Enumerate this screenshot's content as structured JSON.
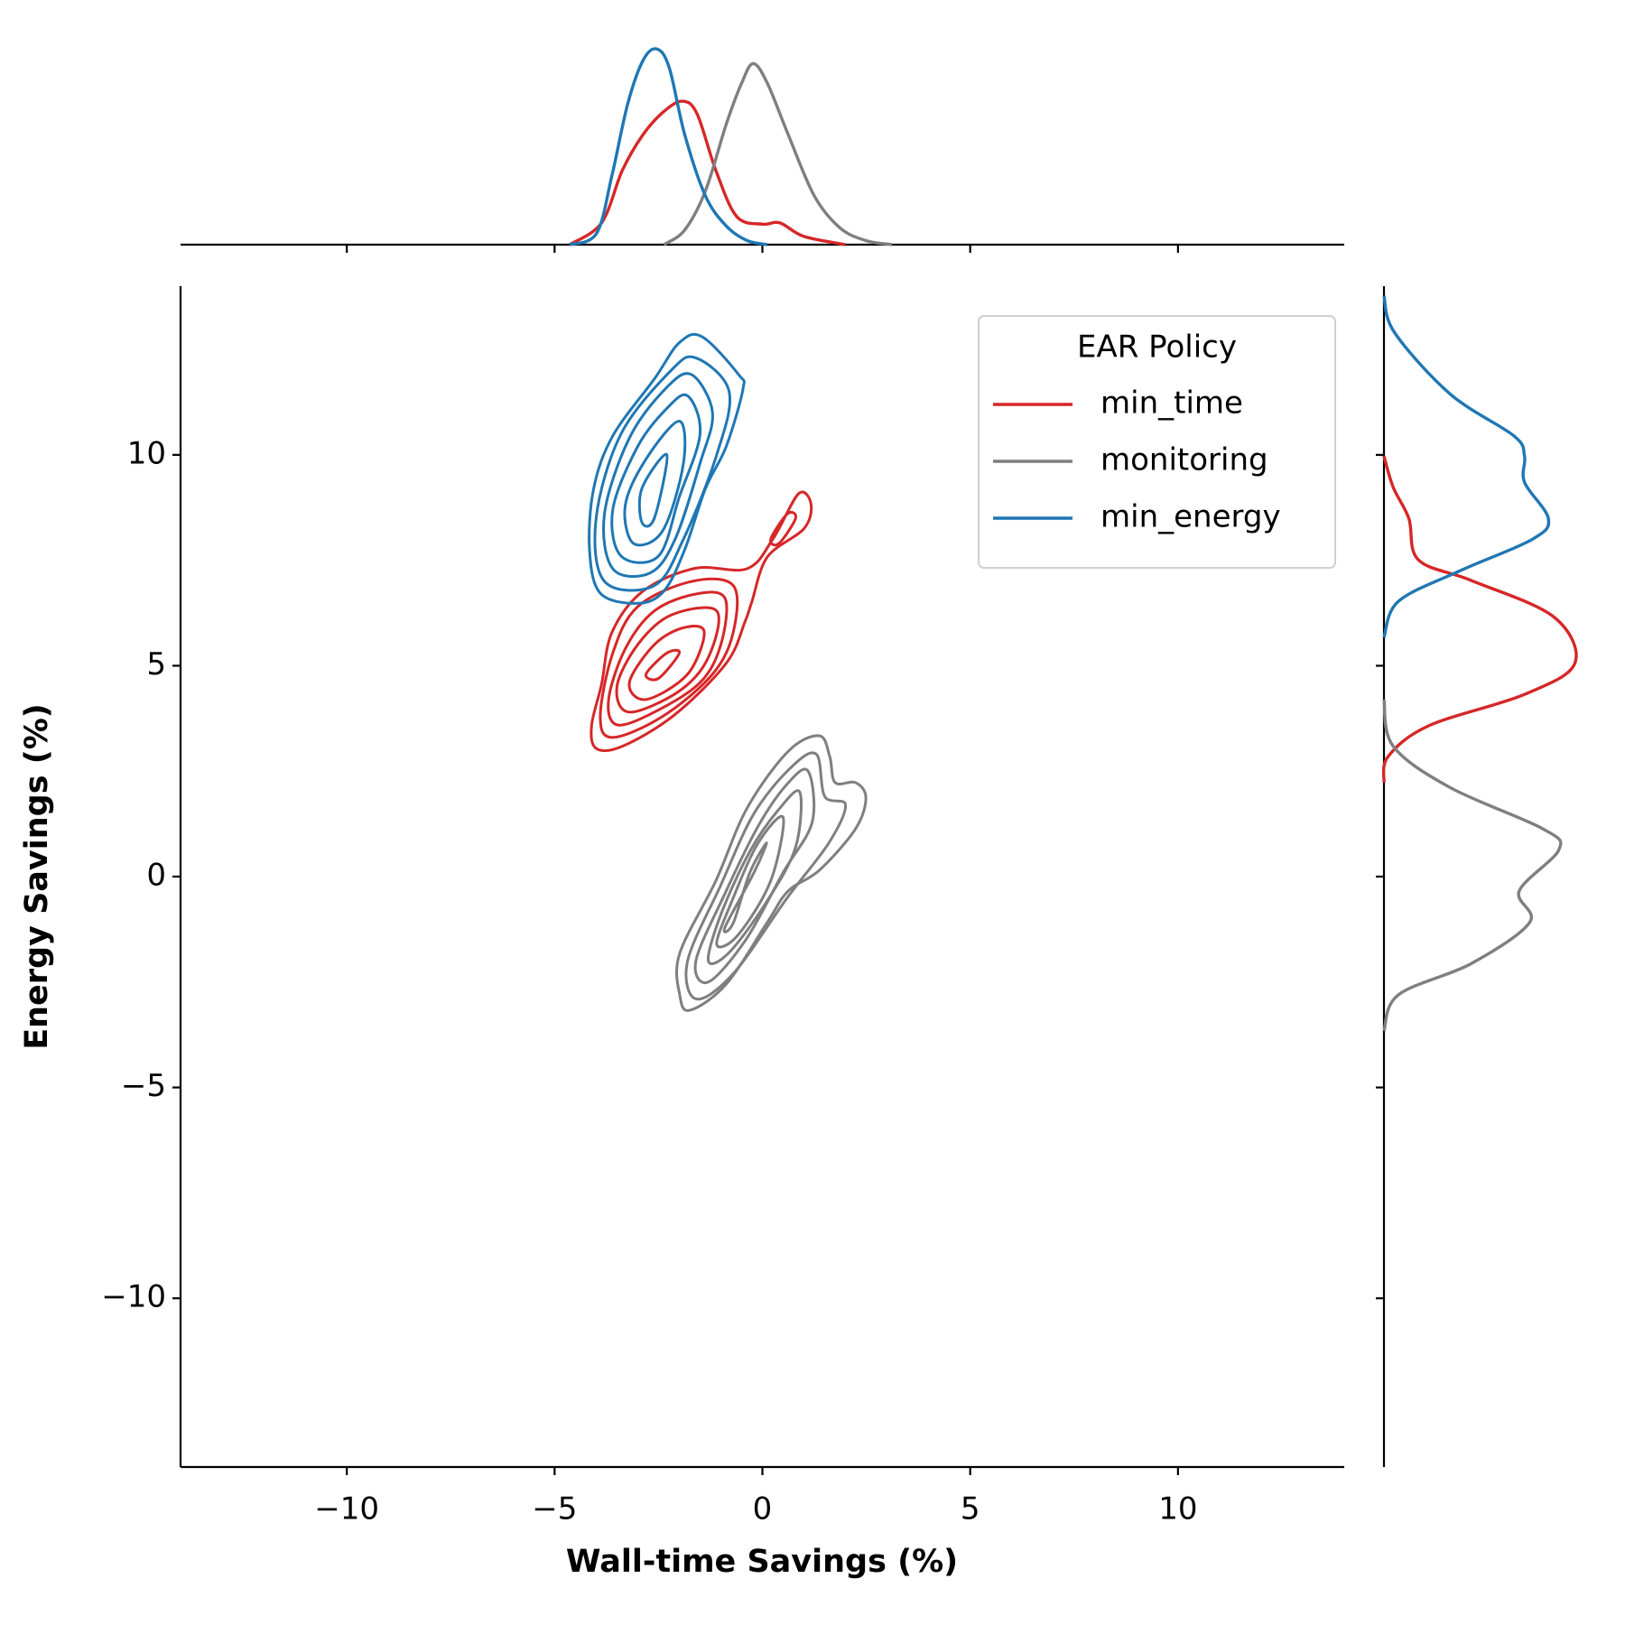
{
  "chart_data": {
    "type": "kde-joint",
    "x_label": "Wall-time Savings (%)",
    "y_label": "Energy Savings (%)",
    "xlim": [
      -14,
      14
    ],
    "ylim": [
      -14,
      14
    ],
    "density_lim": [
      0,
      0.8
    ],
    "xticks": [
      {
        "value": -10,
        "label": "−10"
      },
      {
        "value": -5,
        "label": "−5"
      },
      0,
      5,
      10
    ],
    "yticks": [
      {
        "value": -10,
        "label": "−10"
      },
      {
        "value": -5,
        "label": "−5"
      },
      0,
      5,
      10
    ],
    "legend_title": "EAR Policy",
    "legend_position": "upper-right",
    "series": [
      {
        "name": "min_time",
        "color": "#d62728",
        "contours": [
          {
            "x": [
              -0.37,
              0.25,
              0.87,
              1.17,
              1.0,
              0.12,
              -0.25,
              -0.42,
              -0.87,
              -2.12,
              -3.37,
              -4.0,
              -4.11,
              -3.87,
              -3.62,
              -2.87,
              -1.62
            ],
            "y": [
              7.3,
              8.0,
              9.08,
              8.83,
              8.25,
              7.58,
              6.53,
              6.04,
              5.06,
              3.83,
              3.09,
              3.04,
              3.58,
              4.56,
              5.79,
              6.77,
              7.31
            ]
          },
          {
            "x": [
              0.2,
              0.6,
              0.8,
              0.4
            ],
            "y": [
              8.0,
              8.6,
              8.5,
              7.9
            ]
          },
          {
            "x": [
              -0.7,
              -0.7,
              -1.2,
              -2.4,
              -3.6,
              -3.9,
              -3.6,
              -3.0,
              -1.7
            ],
            "y": [
              6.9,
              5.8,
              4.8,
              3.8,
              3.3,
              3.8,
              5.3,
              6.4,
              7.0
            ]
          },
          {
            "x": [
              -0.9,
              -1.0,
              -1.5,
              -2.6,
              -3.5,
              -3.7,
              -3.3,
              -2.6,
              -1.6
            ],
            "y": [
              6.6,
              5.5,
              4.6,
              3.9,
              3.6,
              4.2,
              5.4,
              6.3,
              6.7
            ]
          },
          {
            "x": [
              -1.1,
              -1.3,
              -2.0,
              -3.2,
              -3.5,
              -3.0,
              -2.2
            ],
            "y": [
              6.3,
              5.2,
              4.4,
              3.9,
              4.5,
              5.5,
              6.2
            ]
          },
          {
            "x": [
              -1.4,
              -1.8,
              -2.8,
              -3.2,
              -2.6,
              -1.9
            ],
            "y": [
              5.8,
              4.8,
              4.2,
              4.6,
              5.5,
              5.9
            ]
          },
          {
            "x": [
              -2.0,
              -2.5,
              -2.8,
              -2.3
            ],
            "y": [
              5.3,
              4.7,
              4.8,
              5.3
            ]
          }
        ],
        "marginal_x": {
          "x": [
            -4.64,
            -3.87,
            -3.37,
            -2.87,
            -2.37,
            -1.92,
            -1.57,
            -1.12,
            -0.62,
            0,
            0.42,
            1.0,
            2.0
          ],
          "density": [
            0,
            0.085,
            0.29,
            0.43,
            0.52,
            0.56,
            0.51,
            0.29,
            0.11,
            0.08,
            0.085,
            0.032,
            0
          ]
        },
        "marginal_y": {
          "y": [
            9.97,
            9.23,
            8.49,
            7.51,
            7.02,
            6.16,
            5.06,
            4.32,
            3.58,
            2.85,
            2.23
          ],
          "density": [
            0,
            0.035,
            0.094,
            0.13,
            0.33,
            0.64,
            0.72,
            0.53,
            0.17,
            0.016,
            0
          ]
        }
      },
      {
        "name": "monitoring",
        "color": "#7f7f7f",
        "contours": [
          {
            "x": [
              1.37,
              1.62,
              1.75,
              2.24,
              2.49,
              2.24,
              1.37,
              0.62,
              0.12,
              -0.87,
              -1.75,
              -1.99,
              -1.99,
              -1.12,
              -0.37,
              0.62
            ],
            "y": [
              3.34,
              2.85,
              2.23,
              2.23,
              1.87,
              1.13,
              0.15,
              -0.34,
              -1.08,
              -2.55,
              -3.17,
              -2.8,
              -1.82,
              -0.1,
              1.62,
              2.97
            ]
          },
          {
            "x": [
              1.3,
              1.5,
              2.0,
              1.6,
              0.6,
              -0.7,
              -1.6,
              -1.8,
              -1.0,
              -0.2,
              0.7
            ],
            "y": [
              2.9,
              1.9,
              1.7,
              0.8,
              -0.5,
              -2.3,
              -2.9,
              -2.0,
              -0.2,
              1.5,
              2.6
            ]
          },
          {
            "x": [
              1.1,
              1.2,
              0.5,
              -0.4,
              -1.3,
              -1.6,
              -0.9,
              -0.1,
              0.6
            ],
            "y": [
              2.5,
              1.3,
              0.1,
              -1.5,
              -2.5,
              -2.0,
              -0.4,
              1.2,
              2.2
            ]
          },
          {
            "x": [
              0.9,
              0.8,
              0.1,
              -0.8,
              -1.3,
              -1.0,
              -0.3,
              0.4
            ],
            "y": [
              2.0,
              0.7,
              -0.6,
              -1.8,
              -2.0,
              -0.9,
              0.6,
              1.6
            ]
          },
          {
            "x": [
              0.5,
              0.2,
              -0.6,
              -1.1,
              -0.7,
              -0.1
            ],
            "y": [
              1.4,
              -0.1,
              -1.4,
              -1.6,
              -0.5,
              0.8
            ]
          },
          {
            "x": [
              0.1,
              -0.2,
              -0.9,
              -0.7,
              -0.3
            ],
            "y": [
              0.8,
              0.1,
              -1.2,
              -1.1,
              0.1
            ]
          }
        ],
        "marginal_x": {
          "x": [
            -2.37,
            -1.87,
            -1.37,
            -0.87,
            -0.5,
            -0.22,
            0.12,
            0.62,
            1.25,
            1.87,
            2.49,
            3.12
          ],
          "density": [
            0,
            0.057,
            0.21,
            0.47,
            0.63,
            0.707,
            0.63,
            0.43,
            0.19,
            0.065,
            0.016,
            0
          ]
        },
        "marginal_y": {
          "y": [
            4.2,
            3.09,
            2.11,
            1.13,
            0.64,
            -0.34,
            -1.08,
            -2.06,
            -2.8,
            -3.66
          ],
          "density": [
            0,
            0.035,
            0.25,
            0.6,
            0.66,
            0.51,
            0.55,
            0.33,
            0.055,
            0
          ]
        }
      },
      {
        "name": "min_energy",
        "color": "#1f77b4",
        "contours": [
          {
            "x": [
              -1.45,
              -0.57,
              -0.47,
              -0.87,
              -1.37,
              -1.87,
              -2.37,
              -3.0,
              -3.9,
              -4.16,
              -4.06,
              -3.6,
              -2.6,
              -2.0
            ],
            "y": [
              12.8,
              11.9,
              11.55,
              10.2,
              9.2,
              7.75,
              6.77,
              6.48,
              6.72,
              7.75,
              9.2,
              10.45,
              11.8,
              12.66
            ]
          },
          {
            "x": [
              -1.6,
              -0.8,
              -1.1,
              -1.9,
              -2.6,
              -3.8,
              -4.0,
              -3.4,
              -2.2
            ],
            "y": [
              12.3,
              11.5,
              10.0,
              8.0,
              6.9,
              7.0,
              8.5,
              10.5,
              12.0
            ]
          },
          {
            "x": [
              -1.7,
              -1.2,
              -1.5,
              -2.1,
              -2.7,
              -3.6,
              -3.8,
              -3.2,
              -2.3
            ],
            "y": [
              11.9,
              11.0,
              9.8,
              8.0,
              7.2,
              7.3,
              8.6,
              10.4,
              11.6
            ]
          },
          {
            "x": [
              -1.8,
              -1.5,
              -2.0,
              -2.5,
              -3.4,
              -3.6,
              -3.0,
              -2.3
            ],
            "y": [
              11.4,
              10.5,
              9.0,
              7.6,
              7.6,
              8.7,
              10.2,
              11.1
            ]
          },
          {
            "x": [
              -2.0,
              -1.9,
              -2.4,
              -3.1,
              -3.3,
              -2.8
            ],
            "y": [
              10.8,
              9.8,
              8.2,
              7.9,
              8.8,
              9.9
            ]
          },
          {
            "x": [
              -2.3,
              -2.6,
              -2.9,
              -2.9
            ],
            "y": [
              10.0,
              8.5,
              8.4,
              9.2
            ]
          }
        ],
        "marginal_x": {
          "x": [
            -4.64,
            -3.99,
            -3.62,
            -3.24,
            -2.87,
            -2.54,
            -2.24,
            -1.87,
            -1.37,
            -0.87,
            -0.37,
            0.12
          ],
          "density": [
            0,
            0.044,
            0.27,
            0.55,
            0.72,
            0.764,
            0.69,
            0.43,
            0.19,
            0.073,
            0.016,
            0
          ]
        },
        "marginal_y": {
          "y": [
            13.77,
            12.9,
            11.44,
            10.45,
            9.97,
            9.35,
            8.49,
            8.0,
            7.26,
            6.53,
            5.67
          ],
          "density": [
            0,
            0.04,
            0.25,
            0.49,
            0.53,
            0.53,
            0.62,
            0.56,
            0.29,
            0.055,
            0
          ]
        }
      }
    ]
  }
}
